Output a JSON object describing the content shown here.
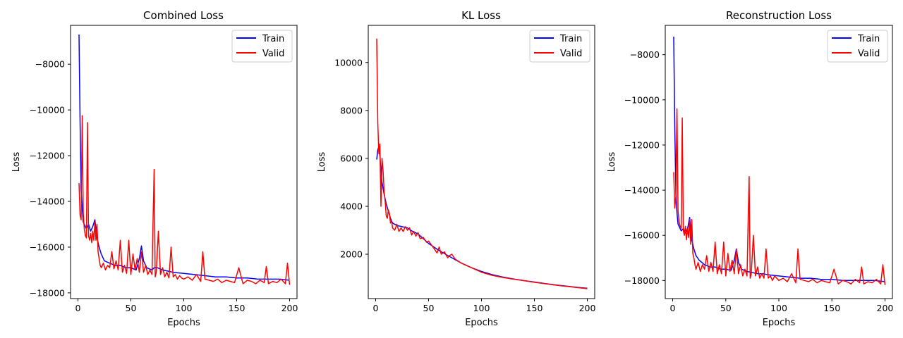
{
  "chart_data": [
    {
      "type": "line",
      "title": "Combined Loss",
      "xlabel": "Epochs",
      "ylabel": "Loss",
      "xlim": [
        -7,
        207
      ],
      "ylim": [
        -18250,
        -6300
      ],
      "xticks": [
        0,
        50,
        100,
        150,
        200
      ],
      "yticks": [
        -18000,
        -16000,
        -14000,
        -12000,
        -10000,
        -8000
      ],
      "tick_labels_x": [
        "0",
        "50",
        "100",
        "150",
        "200"
      ],
      "tick_labels_y": [
        "−18000",
        "−16000",
        "−14000",
        "−12000",
        "−10000",
        "−8000"
      ],
      "legend": {
        "position": "top-right",
        "entries": [
          "Train",
          "Valid"
        ]
      },
      "grid": false,
      "series": [
        {
          "name": "Train",
          "color": "#0000ff",
          "x": [
            1,
            2,
            3,
            4,
            5,
            6,
            8,
            10,
            12,
            14,
            16,
            18,
            20,
            22,
            25,
            30,
            35,
            40,
            45,
            50,
            55,
            58,
            60,
            62,
            65,
            70,
            72,
            75,
            80,
            85,
            90,
            100,
            110,
            120,
            130,
            140,
            150,
            160,
            170,
            180,
            190,
            200
          ],
          "y": [
            -6700,
            -10500,
            -13500,
            -14300,
            -14900,
            -15000,
            -15200,
            -15000,
            -15300,
            -15100,
            -14800,
            -15600,
            -16000,
            -16300,
            -16600,
            -16700,
            -16800,
            -16800,
            -16900,
            -16900,
            -17000,
            -16500,
            -15950,
            -16600,
            -16900,
            -17000,
            -16900,
            -16900,
            -17000,
            -17050,
            -17100,
            -17150,
            -17200,
            -17250,
            -17300,
            -17300,
            -17350,
            -17350,
            -17400,
            -17400,
            -17400,
            -17450
          ]
        },
        {
          "name": "Valid",
          "color": "#ff0000",
          "x": [
            1,
            2,
            3,
            4,
            5,
            6,
            7,
            8,
            9,
            10,
            11,
            12,
            13,
            14,
            15,
            16,
            17,
            18,
            19,
            20,
            21,
            22,
            24,
            26,
            28,
            30,
            32,
            34,
            36,
            38,
            40,
            42,
            44,
            46,
            48,
            50,
            52,
            54,
            56,
            58,
            60,
            62,
            64,
            66,
            68,
            70,
            71,
            72,
            73,
            74,
            76,
            78,
            80,
            82,
            84,
            86,
            88,
            90,
            92,
            94,
            96,
            98,
            100,
            104,
            108,
            112,
            116,
            118,
            120,
            124,
            128,
            132,
            136,
            140,
            144,
            148,
            152,
            156,
            160,
            164,
            168,
            172,
            176,
            178,
            180,
            184,
            188,
            192,
            196,
            198,
            200
          ],
          "y": [
            -13200,
            -14600,
            -14800,
            -10250,
            -14500,
            -15200,
            -15500,
            -15600,
            -10550,
            -15500,
            -15700,
            -15400,
            -15800,
            -15300,
            -15700,
            -14900,
            -15700,
            -15000,
            -16200,
            -16500,
            -16800,
            -16900,
            -16700,
            -17000,
            -16800,
            -16900,
            -16200,
            -16950,
            -16600,
            -17000,
            -15700,
            -17100,
            -16800,
            -17150,
            -15700,
            -17200,
            -16300,
            -17000,
            -16500,
            -17100,
            -16200,
            -17100,
            -16800,
            -17200,
            -17000,
            -17200,
            -14800,
            -12600,
            -17300,
            -17100,
            -15300,
            -17200,
            -16900,
            -17300,
            -17100,
            -17350,
            -16000,
            -17300,
            -17200,
            -17400,
            -17250,
            -17350,
            -17400,
            -17300,
            -17450,
            -17200,
            -17500,
            -16200,
            -17400,
            -17450,
            -17500,
            -17400,
            -17550,
            -17450,
            -17500,
            -17550,
            -16900,
            -17600,
            -17450,
            -17500,
            -17600,
            -17450,
            -17550,
            -16850,
            -17600,
            -17500,
            -17550,
            -17400,
            -17600,
            -16700,
            -17650
          ]
        }
      ]
    },
    {
      "type": "line",
      "title": "KL Loss",
      "xlabel": "Epochs",
      "ylabel": "Loss",
      "xlim": [
        -7,
        207
      ],
      "ylim": [
        150,
        11550
      ],
      "xticks": [
        0,
        50,
        100,
        150,
        200
      ],
      "yticks": [
        2000,
        4000,
        6000,
        8000,
        10000
      ],
      "tick_labels_x": [
        "0",
        "50",
        "100",
        "150",
        "200"
      ],
      "tick_labels_y": [
        "2000",
        "4000",
        "6000",
        "8000",
        "10000"
      ],
      "legend": {
        "position": "top-right",
        "entries": [
          "Train",
          "Valid"
        ]
      },
      "grid": false,
      "series": [
        {
          "name": "Train",
          "color": "#0000ff",
          "x": [
            1,
            2,
            3,
            4,
            5,
            6,
            8,
            10,
            12,
            14,
            16,
            20,
            25,
            30,
            35,
            40,
            45,
            50,
            60,
            70,
            80,
            90,
            100,
            110,
            120,
            130,
            140,
            150,
            160,
            170,
            180,
            190,
            200
          ],
          "y": [
            5950,
            6350,
            6500,
            6100,
            5500,
            5000,
            4500,
            4100,
            3800,
            3500,
            3300,
            3200,
            3150,
            3100,
            2950,
            2850,
            2650,
            2450,
            2150,
            1900,
            1650,
            1450,
            1280,
            1150,
            1050,
            970,
            900,
            840,
            780,
            720,
            670,
            620,
            580
          ]
        },
        {
          "name": "Valid",
          "color": "#ff0000",
          "x": [
            1,
            2,
            3,
            4,
            5,
            6,
            7,
            8,
            9,
            10,
            11,
            12,
            13,
            14,
            15,
            16,
            18,
            20,
            22,
            24,
            26,
            28,
            30,
            32,
            34,
            36,
            38,
            40,
            42,
            45,
            48,
            50,
            55,
            58,
            60,
            62,
            65,
            68,
            70,
            72,
            75,
            80,
            85,
            90,
            95,
            100,
            110,
            120,
            130,
            140,
            150,
            160,
            170,
            180,
            190,
            200
          ],
          "y": [
            11000,
            7500,
            6200,
            6600,
            4000,
            6000,
            5500,
            4600,
            4200,
            3600,
            3500,
            3850,
            3700,
            3300,
            3400,
            3100,
            3000,
            3250,
            2950,
            3100,
            2950,
            3150,
            3000,
            3100,
            2800,
            2950,
            2750,
            2900,
            2650,
            2700,
            2500,
            2550,
            2250,
            2050,
            2300,
            2000,
            2100,
            1850,
            1950,
            2000,
            1800,
            1650,
            1550,
            1450,
            1350,
            1250,
            1120,
            1030,
            960,
            900,
            830,
            770,
            710,
            660,
            610,
            560
          ]
        }
      ]
    },
    {
      "type": "line",
      "title": "Reconstruction Loss",
      "xlabel": "Epochs",
      "ylabel": "Loss",
      "xlim": [
        -7,
        207
      ],
      "ylim": [
        -18800,
        -6700
      ],
      "xticks": [
        0,
        50,
        100,
        150,
        200
      ],
      "yticks": [
        -18000,
        -16000,
        -14000,
        -12000,
        -10000,
        -8000
      ],
      "tick_labels_x": [
        "0",
        "50",
        "100",
        "150",
        "200"
      ],
      "tick_labels_y": [
        "−18000",
        "−16000",
        "−14000",
        "−12000",
        "−10000",
        "−8000"
      ],
      "legend": {
        "position": "top-right",
        "entries": [
          "Train",
          "Valid"
        ]
      },
      "grid": false,
      "series": [
        {
          "name": "Train",
          "color": "#0000ff",
          "x": [
            1,
            2,
            3,
            4,
            5,
            6,
            8,
            10,
            12,
            14,
            16,
            18,
            20,
            22,
            25,
            30,
            35,
            40,
            45,
            50,
            55,
            58,
            60,
            62,
            65,
            70,
            75,
            80,
            85,
            90,
            100,
            110,
            120,
            130,
            140,
            150,
            160,
            170,
            180,
            190,
            200
          ],
          "y": [
            -7200,
            -11200,
            -14100,
            -15000,
            -15500,
            -15600,
            -15800,
            -15700,
            -15900,
            -15700,
            -15200,
            -16200,
            -16600,
            -16900,
            -17100,
            -17300,
            -17400,
            -17400,
            -17500,
            -17500,
            -17550,
            -17100,
            -16600,
            -17200,
            -17500,
            -17600,
            -17650,
            -17700,
            -17700,
            -17750,
            -17800,
            -17850,
            -17900,
            -17900,
            -17950,
            -17950,
            -18000,
            -18000,
            -18000,
            -18000,
            -18050
          ]
        },
        {
          "name": "Valid",
          "color": "#ff0000",
          "x": [
            1,
            2,
            3,
            4,
            5,
            6,
            7,
            8,
            9,
            10,
            11,
            12,
            13,
            14,
            15,
            16,
            17,
            18,
            19,
            20,
            21,
            22,
            24,
            26,
            28,
            30,
            32,
            34,
            36,
            38,
            40,
            42,
            44,
            46,
            48,
            50,
            52,
            54,
            56,
            58,
            60,
            62,
            64,
            66,
            68,
            70,
            71,
            72,
            73,
            74,
            76,
            78,
            80,
            82,
            84,
            86,
            88,
            90,
            92,
            94,
            96,
            98,
            100,
            104,
            108,
            112,
            116,
            118,
            120,
            124,
            128,
            132,
            136,
            140,
            144,
            148,
            152,
            156,
            160,
            164,
            168,
            172,
            176,
            178,
            180,
            184,
            188,
            192,
            196,
            198,
            200
          ],
          "y": [
            -13200,
            -14800,
            -14300,
            -10400,
            -14900,
            -15400,
            -15600,
            -15700,
            -10800,
            -15800,
            -16000,
            -15600,
            -16200,
            -15700,
            -16100,
            -15300,
            -16400,
            -15300,
            -16800,
            -17000,
            -17300,
            -17500,
            -17200,
            -17600,
            -17300,
            -17500,
            -16900,
            -17600,
            -17200,
            -17600,
            -16300,
            -17700,
            -17300,
            -17700,
            -16300,
            -17800,
            -16800,
            -17600,
            -17100,
            -17700,
            -16600,
            -17700,
            -17300,
            -17800,
            -17500,
            -17800,
            -15500,
            -13400,
            -17900,
            -17700,
            -16000,
            -17800,
            -17400,
            -17900,
            -17700,
            -17900,
            -16600,
            -17900,
            -17800,
            -18000,
            -17800,
            -17900,
            -18000,
            -17900,
            -18050,
            -17700,
            -18100,
            -16600,
            -17950,
            -18000,
            -18050,
            -17950,
            -18100,
            -18000,
            -18050,
            -18100,
            -17500,
            -18150,
            -18000,
            -18050,
            -18150,
            -17950,
            -18100,
            -17400,
            -18150,
            -18050,
            -18100,
            -17950,
            -18150,
            -17300,
            -18200
          ]
        }
      ]
    }
  ]
}
